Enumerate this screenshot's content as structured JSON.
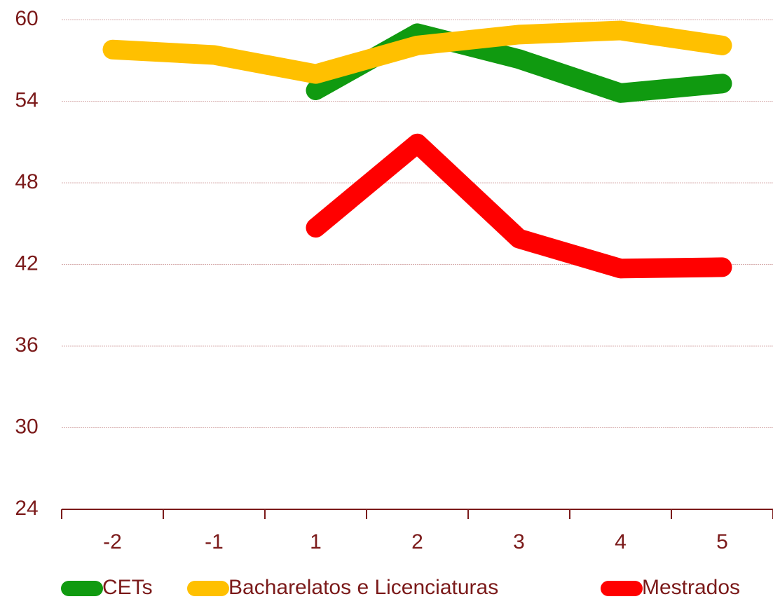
{
  "chart_data": {
    "type": "line",
    "categories": [
      "-2",
      "-1",
      "1",
      "2",
      "3",
      "4",
      "5"
    ],
    "series": [
      {
        "name": "CETs",
        "color": "#109a10",
        "values": [
          null,
          null,
          54.8,
          59.0,
          57.1,
          54.6,
          55.3
        ]
      },
      {
        "name": "Bacharelatos e Licenciaturas",
        "color": "#ffc000",
        "values": [
          57.8,
          57.4,
          56.0,
          58.1,
          58.9,
          59.2,
          58.1
        ]
      },
      {
        "name": "Mestrados",
        "color": "#ff0000",
        "values": [
          null,
          null,
          44.7,
          50.9,
          43.9,
          41.7,
          41.8
        ]
      }
    ],
    "ylim": [
      24,
      60
    ],
    "yticks": [
      24,
      30,
      36,
      42,
      48,
      54,
      60
    ],
    "grid": true,
    "legend": "bottom"
  }
}
